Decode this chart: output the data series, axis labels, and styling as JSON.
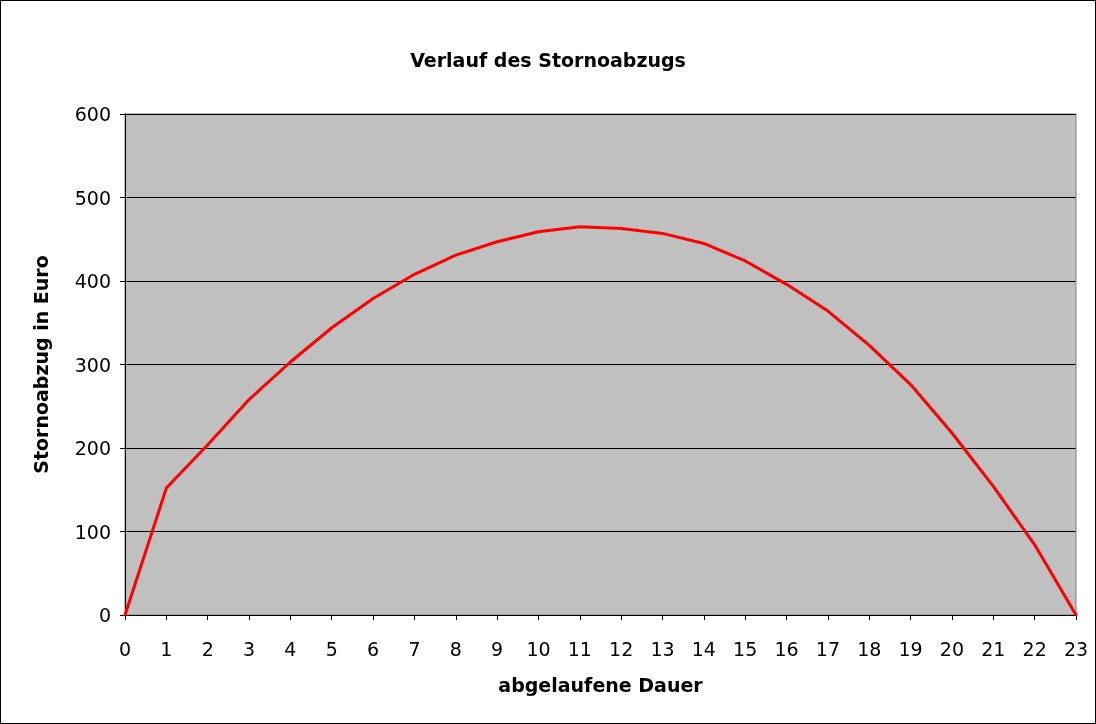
{
  "chart_data": {
    "type": "line",
    "title": "Verlauf des Stornoabzugs",
    "xlabel": "abgelaufene Dauer",
    "ylabel": "Stornoabzug in Euro",
    "x": [
      0,
      1,
      2,
      3,
      4,
      5,
      6,
      7,
      8,
      9,
      10,
      11,
      12,
      13,
      14,
      15,
      16,
      17,
      18,
      19,
      20,
      21,
      22,
      23
    ],
    "series": [
      {
        "color": "#ff0000",
        "values": [
          0,
          152,
          204,
          258,
          303,
          344,
          379,
          408,
          431,
          447,
          459,
          465,
          463,
          457,
          445,
          424,
          396,
          364,
          323,
          276,
          218,
          154,
          84,
          0
        ]
      }
    ],
    "xlim": [
      0,
      23
    ],
    "xticks": [
      0,
      1,
      2,
      3,
      4,
      5,
      6,
      7,
      8,
      9,
      10,
      11,
      12,
      13,
      14,
      15,
      16,
      17,
      18,
      19,
      20,
      21,
      22,
      23
    ],
    "ylim": [
      0,
      600
    ],
    "yticks": [
      0,
      100,
      200,
      300,
      400,
      500,
      600
    ],
    "grid": "y",
    "marker": "none",
    "line_style": "solid"
  }
}
